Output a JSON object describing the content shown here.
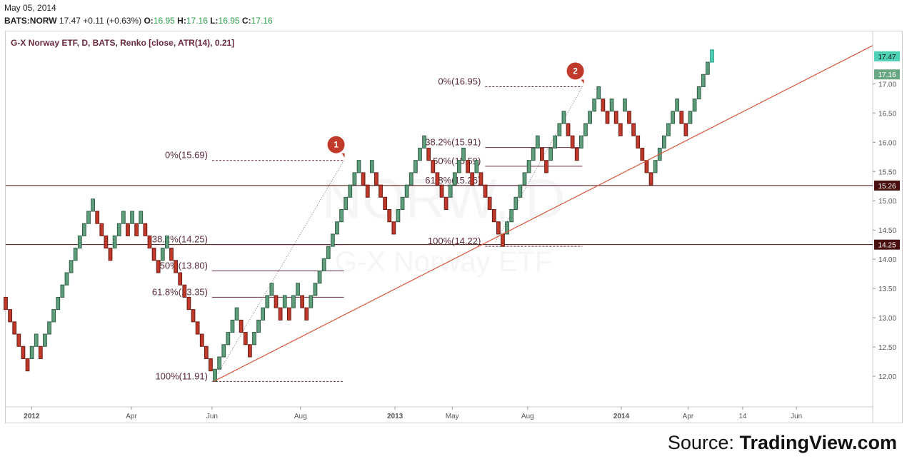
{
  "header": {
    "date": "May 05, 2014",
    "symbol": "BATS:NORW",
    "last": "17.47",
    "change": "+0.11 (+0.63%)",
    "o_label": "O:",
    "o_value": "16.95",
    "h_label": "H:",
    "h_value": "17.16",
    "l_label": "L:",
    "l_value": "16.95",
    "c_label": "C:",
    "c_value": "17.16"
  },
  "chart_title": "G-X Norway ETF, D, BATS, Renko [close, ATR(14), 0.21]",
  "watermark": {
    "symbol": "NORW, D",
    "name": "G-X Norway ETF"
  },
  "source": {
    "prefix": "Source: ",
    "brand": "TradingView.com"
  },
  "colors": {
    "up": "#5f9e7a",
    "down": "#c0392b",
    "accent": "#4fd1b5",
    "trend": "#d9573c",
    "level_dark": "#4a0f0f"
  },
  "chart_data": {
    "type": "renko",
    "box_size": 0.21,
    "ylim": [
      11.5,
      17.7
    ],
    "y_ticks": [
      "12.00",
      "12.50",
      "13.00",
      "13.50",
      "14.00",
      "14.50",
      "15.00",
      "15.50",
      "16.00",
      "16.50",
      "17.00"
    ],
    "x_ticks": [
      {
        "label": "2012",
        "bold": true,
        "t": 0.03
      },
      {
        "label": "Apr",
        "bold": false,
        "t": 0.145
      },
      {
        "label": "Jun",
        "bold": false,
        "t": 0.238
      },
      {
        "label": "Aug",
        "bold": false,
        "t": 0.34
      },
      {
        "label": "2013",
        "bold": true,
        "t": 0.449
      },
      {
        "label": "May",
        "bold": false,
        "t": 0.515
      },
      {
        "label": "Aug",
        "bold": false,
        "t": 0.602
      },
      {
        "label": "2014",
        "bold": true,
        "t": 0.71
      },
      {
        "label": "Apr",
        "bold": false,
        "t": 0.787
      },
      {
        "label": "14",
        "bold": false,
        "t": 0.85
      },
      {
        "label": "Jun",
        "bold": false,
        "t": 0.912
      }
    ],
    "bricks": [
      [
        13.35,
        13.14
      ],
      [
        13.14,
        12.93
      ],
      [
        12.93,
        12.72
      ],
      [
        12.72,
        12.51
      ],
      [
        12.51,
        12.3
      ],
      [
        12.3,
        12.09
      ],
      [
        12.3,
        12.51
      ],
      [
        12.51,
        12.72
      ],
      [
        12.51,
        12.3
      ],
      [
        12.51,
        12.72
      ],
      [
        12.72,
        12.93
      ],
      [
        12.93,
        13.14
      ],
      [
        13.14,
        13.35
      ],
      [
        13.35,
        13.56
      ],
      [
        13.56,
        13.77
      ],
      [
        13.77,
        13.98
      ],
      [
        13.98,
        14.19
      ],
      [
        14.19,
        14.4
      ],
      [
        14.4,
        14.61
      ],
      [
        14.61,
        14.82
      ],
      [
        14.82,
        15.03
      ],
      [
        14.82,
        14.61
      ],
      [
        14.61,
        14.4
      ],
      [
        14.4,
        14.19
      ],
      [
        14.19,
        13.98
      ],
      [
        14.19,
        14.4
      ],
      [
        14.4,
        14.61
      ],
      [
        14.61,
        14.82
      ],
      [
        14.61,
        14.4
      ],
      [
        14.61,
        14.82
      ],
      [
        14.61,
        14.4
      ],
      [
        14.61,
        14.82
      ],
      [
        14.61,
        14.4
      ],
      [
        14.4,
        14.19
      ],
      [
        14.19,
        13.98
      ],
      [
        13.98,
        13.77
      ],
      [
        13.98,
        14.19
      ],
      [
        14.19,
        14.4
      ],
      [
        14.19,
        13.98
      ],
      [
        13.98,
        13.77
      ],
      [
        13.77,
        13.56
      ],
      [
        13.56,
        13.35
      ],
      [
        13.35,
        13.14
      ],
      [
        13.14,
        12.93
      ],
      [
        12.93,
        12.72
      ],
      [
        12.72,
        12.51
      ],
      [
        12.51,
        12.3
      ],
      [
        12.3,
        12.09
      ],
      [
        11.91,
        12.12
      ],
      [
        12.12,
        12.33
      ],
      [
        12.33,
        12.54
      ],
      [
        12.54,
        12.75
      ],
      [
        12.75,
        12.96
      ],
      [
        12.96,
        13.17
      ],
      [
        12.96,
        12.75
      ],
      [
        12.75,
        12.54
      ],
      [
        12.54,
        12.33
      ],
      [
        12.54,
        12.75
      ],
      [
        12.75,
        12.96
      ],
      [
        12.96,
        13.17
      ],
      [
        13.17,
        13.38
      ],
      [
        13.38,
        13.59
      ],
      [
        13.38,
        13.17
      ],
      [
        13.17,
        12.96
      ],
      [
        13.17,
        13.38
      ],
      [
        13.17,
        12.96
      ],
      [
        13.17,
        13.38
      ],
      [
        13.38,
        13.59
      ],
      [
        13.38,
        13.17
      ],
      [
        13.17,
        12.96
      ],
      [
        13.17,
        13.38
      ],
      [
        13.38,
        13.59
      ],
      [
        13.59,
        13.8
      ],
      [
        13.8,
        14.01
      ],
      [
        14.01,
        14.22
      ],
      [
        14.22,
        14.43
      ],
      [
        14.43,
        14.64
      ],
      [
        14.64,
        14.85
      ],
      [
        14.85,
        15.06
      ],
      [
        15.06,
        15.27
      ],
      [
        15.27,
        15.48
      ],
      [
        15.48,
        15.69
      ],
      [
        15.48,
        15.27
      ],
      [
        15.27,
        15.06
      ],
      [
        15.48,
        15.69
      ],
      [
        15.48,
        15.27
      ],
      [
        15.27,
        15.06
      ],
      [
        15.06,
        14.85
      ],
      [
        14.85,
        14.64
      ],
      [
        14.64,
        14.43
      ],
      [
        14.64,
        14.85
      ],
      [
        14.85,
        15.06
      ],
      [
        15.06,
        15.27
      ],
      [
        15.27,
        15.48
      ],
      [
        15.48,
        15.69
      ],
      [
        15.69,
        15.9
      ],
      [
        15.9,
        16.11
      ],
      [
        15.9,
        15.69
      ],
      [
        15.69,
        15.48
      ],
      [
        15.48,
        15.27
      ],
      [
        15.27,
        15.06
      ],
      [
        15.06,
        14.85
      ],
      [
        15.06,
        15.27
      ],
      [
        15.27,
        15.48
      ],
      [
        15.48,
        15.69
      ],
      [
        15.69,
        15.9
      ],
      [
        15.69,
        15.48
      ],
      [
        15.48,
        15.27
      ],
      [
        15.48,
        15.69
      ],
      [
        15.48,
        15.27
      ],
      [
        15.27,
        15.06
      ],
      [
        15.06,
        14.85
      ],
      [
        14.85,
        14.64
      ],
      [
        14.64,
        14.43
      ],
      [
        14.43,
        14.22
      ],
      [
        14.43,
        14.64
      ],
      [
        14.64,
        14.85
      ],
      [
        14.85,
        15.06
      ],
      [
        15.06,
        15.27
      ],
      [
        15.27,
        15.48
      ],
      [
        15.48,
        15.69
      ],
      [
        15.69,
        15.9
      ],
      [
        15.9,
        16.11
      ],
      [
        15.9,
        15.69
      ],
      [
        15.69,
        15.48
      ],
      [
        15.69,
        15.9
      ],
      [
        15.9,
        16.11
      ],
      [
        16.11,
        16.32
      ],
      [
        16.32,
        16.53
      ],
      [
        16.32,
        16.11
      ],
      [
        16.11,
        15.9
      ],
      [
        15.9,
        15.69
      ],
      [
        15.9,
        16.11
      ],
      [
        16.11,
        16.32
      ],
      [
        16.32,
        16.53
      ],
      [
        16.53,
        16.74
      ],
      [
        16.74,
        16.95
      ],
      [
        16.74,
        16.53
      ],
      [
        16.53,
        16.32
      ],
      [
        16.53,
        16.74
      ],
      [
        16.53,
        16.32
      ],
      [
        16.32,
        16.11
      ],
      [
        16.53,
        16.74
      ],
      [
        16.53,
        16.32
      ],
      [
        16.32,
        16.11
      ],
      [
        16.11,
        15.9
      ],
      [
        15.9,
        15.69
      ],
      [
        15.69,
        15.48
      ],
      [
        15.48,
        15.27
      ],
      [
        15.48,
        15.69
      ],
      [
        15.69,
        15.9
      ],
      [
        15.9,
        16.11
      ],
      [
        16.11,
        16.32
      ],
      [
        16.32,
        16.53
      ],
      [
        16.53,
        16.74
      ],
      [
        16.53,
        16.32
      ],
      [
        16.32,
        16.11
      ],
      [
        16.32,
        16.53
      ],
      [
        16.53,
        16.74
      ],
      [
        16.74,
        16.95
      ],
      [
        16.95,
        17.16
      ],
      [
        17.16,
        17.37
      ],
      [
        17.37,
        17.58
      ]
    ],
    "fib_sets": [
      {
        "start_t": 0.238,
        "end_t": 0.39,
        "levels": [
          {
            "label": "0%(15.69)",
            "price": 15.69,
            "dashed": true
          },
          {
            "label": "38.2%(14.25)",
            "price": 14.25,
            "dashed": false
          },
          {
            "label": "50%(13.80)",
            "price": 13.8,
            "dashed": false
          },
          {
            "label": "61.8%(13.35)",
            "price": 13.35,
            "dashed": false
          },
          {
            "label": "100%(11.91)",
            "price": 11.91,
            "dashed": true
          }
        ]
      },
      {
        "start_t": 0.553,
        "end_t": 0.665,
        "levels": [
          {
            "label": "0%(16.95)",
            "price": 16.95,
            "dashed": true
          },
          {
            "label": "38.2%(15.91)",
            "price": 15.91,
            "dashed": false
          },
          {
            "label": "50%(15.59)",
            "price": 15.59,
            "dashed": false
          },
          {
            "label": "61.8%(15.26)",
            "price": 15.26,
            "dashed": false
          },
          {
            "label": "100%(14.22)",
            "price": 14.22,
            "dashed": true
          }
        ]
      }
    ],
    "horizontal_levels": [
      {
        "price": 14.25,
        "label": "14.25"
      },
      {
        "price": 15.26,
        "label": "15.26"
      }
    ],
    "trendline": [
      {
        "t": 0.238,
        "price": 11.91
      },
      {
        "t": 1.0,
        "price": 17.58
      }
    ],
    "fib_connectors": [
      [
        {
          "t": 0.245,
          "price": 12.05
        },
        {
          "t": 0.39,
          "price": 15.69
        }
      ],
      [
        {
          "t": 0.565,
          "price": 14.3
        },
        {
          "t": 0.665,
          "price": 16.95
        }
      ]
    ],
    "markers": [
      {
        "label": "1",
        "t": 0.381,
        "price": 15.69
      },
      {
        "label": "2",
        "t": 0.657,
        "price": 16.95
      }
    ],
    "price_tags": [
      {
        "label": "17.47",
        "price": 17.47,
        "style": "accent"
      },
      {
        "label": "17.16",
        "price": 17.16,
        "style": "green"
      }
    ]
  }
}
